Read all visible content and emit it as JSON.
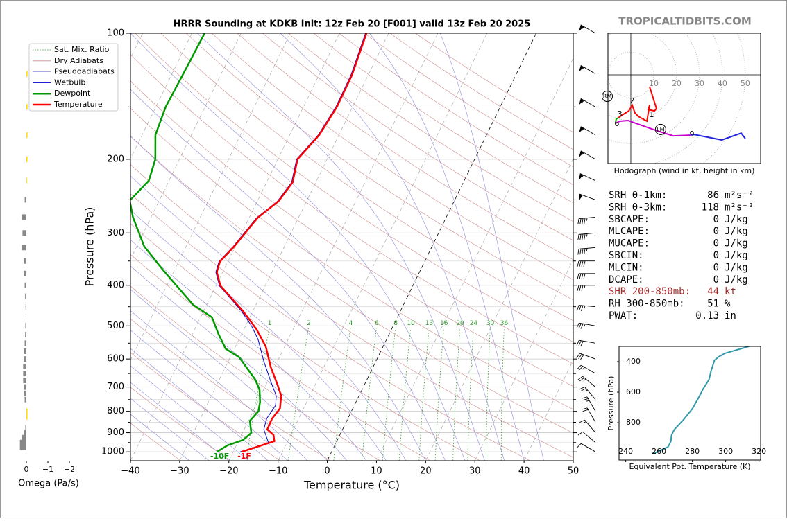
{
  "watermark": "TROPICALTIDBITS.COM",
  "indices": {
    "rows": [
      {
        "label": "SRH 0-1km:",
        "value": 86,
        "unit": "m²s⁻²"
      },
      {
        "label": "SRH 0-3km:",
        "value": 118,
        "unit": "m²s⁻²"
      },
      {
        "label": "SBCAPE:",
        "value": 0,
        "unit": "J/kg"
      },
      {
        "label": "MLCAPE:",
        "value": 0,
        "unit": "J/kg"
      },
      {
        "label": "MUCAPE:",
        "value": 0,
        "unit": "J/kg"
      },
      {
        "label": "SBCIN:",
        "value": 0,
        "unit": "J/kg"
      },
      {
        "label": "MLCIN:",
        "value": 0,
        "unit": "J/kg"
      },
      {
        "label": "DCAPE:",
        "value": 0,
        "unit": "J/kg"
      },
      {
        "label": "SHR 200-850mb:",
        "value": 44,
        "unit": "kt",
        "color": "#a52a2a"
      },
      {
        "label": "RH 300-850mb:",
        "value": 51,
        "unit": "%"
      },
      {
        "label": "PWAT:",
        "value": 0.13,
        "unit": "in"
      }
    ]
  },
  "chart_data": [
    {
      "type": "skewt",
      "title": "HRRR Sounding at KDKB Init: 12z Feb 20 [F001] valid 13z Feb 20 2025",
      "xlabel": "Temperature (°C)",
      "ylabel": "Pressure (hPa)",
      "xlim": [
        -40,
        50
      ],
      "ylim": [
        1050,
        100
      ],
      "log_y": true,
      "xticks": [
        {
          "value": -40,
          "label": "−40"
        },
        {
          "value": -30,
          "label": "−30"
        },
        {
          "value": -20,
          "label": "−20"
        },
        {
          "value": -10,
          "label": "−10"
        },
        0,
        10,
        20,
        30,
        40,
        50
      ],
      "yticks": [
        1000,
        900,
        800,
        700,
        600,
        500,
        400,
        300,
        200,
        100
      ],
      "yticks_minor": [
        950,
        850,
        750,
        650,
        550,
        450,
        350,
        250,
        150
      ],
      "grid": true,
      "reference_lines": [
        {
          "name": "Sat. Mix. Ratio",
          "color": "#2e9a2e"
        },
        {
          "name": "Dry Adiabats",
          "color": "#d08a8a"
        },
        {
          "name": "Pseudoadiabats",
          "color": "#8c8cd8"
        }
      ],
      "mixing_ratio_labels": [
        1,
        2,
        4,
        6,
        8,
        10,
        13,
        16,
        20,
        24,
        30,
        36
      ],
      "series": [
        {
          "name": "Wetbulb",
          "color": "#0000cc",
          "y": [
            1000,
            952,
            884,
            833,
            775,
            735,
            678,
            605,
            539,
            500,
            462,
            401,
            372,
            351,
            323,
            276,
            252,
            227,
            200,
            175,
            150,
            126,
            100
          ],
          "x": [
            -18.6,
            -13.7,
            -16,
            -16.5,
            -16,
            -16.8,
            -19.4,
            -22.9,
            -26.1,
            -28.8,
            -32.2,
            -39.3,
            -41.4,
            -41.8,
            -40.4,
            -38.5,
            -35.9,
            -34.9,
            -36.2,
            -34.2,
            -33.4,
            -33.5,
            -34.7
          ]
        },
        {
          "name": "Dewpoint",
          "color": "#009900",
          "y": [
            1000,
            965,
            937,
            901,
            843,
            800,
            760,
            711,
            672,
            594,
            567,
            523,
            477,
            445,
            401,
            368,
            323,
            275,
            251,
            225,
            200,
            175,
            150,
            124,
            100
          ],
          "x": [
            -23.3,
            -21.8,
            -19.2,
            -18.2,
            -19.7,
            -18.9,
            -19.5,
            -20.8,
            -22.7,
            -28.2,
            -31.8,
            -34.7,
            -37.7,
            -42.8,
            -48,
            -52.3,
            -58.5,
            -63.7,
            -66,
            -64.1,
            -64.9,
            -67.3,
            -68,
            -67.7,
            -67.4
          ],
          "value_labels": [
            "-10F",
            null,
            null,
            null,
            null,
            null,
            null,
            null,
            null,
            null,
            null,
            null,
            null,
            null,
            null,
            null,
            null,
            null,
            null,
            null,
            null,
            null,
            null,
            null,
            null
          ]
        },
        {
          "name": "Temperature",
          "color": "#ff0000",
          "y": [
            1000,
            943,
            911,
            884,
            833,
            788,
            735,
            695,
            627,
            561,
            510,
            462,
            401,
            372,
            351,
            323,
            276,
            252,
            227,
            200,
            175,
            150,
            126,
            100
          ],
          "x": [
            -18.3,
            -12.7,
            -13.5,
            -15.3,
            -15.4,
            -14.8,
            -15.8,
            -17.5,
            -20.8,
            -23.8,
            -27.4,
            -31.9,
            -39.1,
            -41.2,
            -41.6,
            -40.2,
            -38.3,
            -35.7,
            -34.7,
            -36.0,
            -34.0,
            -33.2,
            -33.3,
            -34.5
          ],
          "value_labels": [
            "-1F",
            null,
            null,
            null,
            null,
            null,
            null,
            null,
            null,
            null,
            null,
            null,
            null,
            null,
            null,
            null,
            null,
            null,
            null,
            null,
            null,
            null,
            null,
            null
          ]
        }
      ]
    },
    {
      "type": "hbar",
      "xlabel": "Omega (Pa/s)",
      "xlim": [
        0.4,
        -2.3
      ],
      "ylim": [
        1050,
        100
      ],
      "xticks": [
        0,
        {
          "value": -1,
          "label": "−1"
        },
        {
          "value": -2,
          "label": "−2"
        }
      ],
      "color": "#888888",
      "negative_color": "#ffdd00",
      "y": [
        125,
        150,
        175,
        200,
        225,
        250,
        275,
        300,
        325,
        350,
        375,
        400,
        425,
        450,
        475,
        500,
        525,
        550,
        575,
        600,
        625,
        650,
        675,
        700,
        725,
        750,
        800,
        825,
        850,
        875,
        900,
        925,
        950,
        975
      ],
      "values": [
        -0.05,
        -0.05,
        -0.05,
        -0.05,
        -0.03,
        0.08,
        0.2,
        0.18,
        0.2,
        0.12,
        0.1,
        0.08,
        0.06,
        0.04,
        0.03,
        0.05,
        0.06,
        0.08,
        0.1,
        0.12,
        0.15,
        0.15,
        0.15,
        0.12,
        0.1,
        0.08,
        -0.05,
        -0.05,
        0.03,
        0.05,
        0.1,
        0.2,
        0.3,
        0.3
      ]
    },
    {
      "type": "barbs",
      "y": [
        1000,
        950,
        900,
        850,
        800,
        750,
        700,
        650,
        600,
        550,
        500,
        450,
        400,
        375,
        350,
        325,
        300,
        275,
        250,
        225,
        200,
        175,
        150,
        125,
        100
      ],
      "speed": [
        10,
        10,
        15,
        20,
        25,
        25,
        25,
        25,
        30,
        30,
        35,
        35,
        35,
        40,
        40,
        45,
        45,
        45,
        50,
        55,
        55,
        55,
        55,
        55,
        55
      ],
      "direction": [
        300,
        310,
        320,
        330,
        330,
        320,
        310,
        300,
        290,
        280,
        280,
        275,
        270,
        270,
        270,
        265,
        265,
        265,
        290,
        295,
        300,
        300,
        300,
        300,
        300
      ]
    },
    {
      "type": "hodograph",
      "xlabel": "Hodograph (wind in kt, height in km)",
      "ulim": [
        -10,
        56.7
      ],
      "vlim": [
        -38.8,
        18.2
      ],
      "ring_labels": [
        10,
        20,
        30,
        40,
        50
      ],
      "segments": [
        {
          "color": "#ff0000",
          "u": [
            8.2,
            11.2,
            10.3,
            7.6,
            8.2,
            7.0,
            3.3,
            1.8,
            0.6,
            -0.9,
            -3.3,
            -5.5
          ],
          "v": [
            -5.2,
            -14.8,
            -15.8,
            -15.2,
            -13.3,
            -20.3,
            -18.2,
            -16.7,
            -13.3,
            -15.8,
            -17.3,
            -18.8
          ]
        },
        {
          "color": "#00aa00",
          "u": [
            -5.5,
            -6.4,
            -6.7
          ],
          "v": [
            -18.8,
            -19.4,
            -21.2
          ]
        },
        {
          "color": "#cc00cc",
          "u": [
            -6.7,
            -4.8,
            -1.2,
            6.4,
            12.4,
            18.5,
            26
          ],
          "v": [
            -21.2,
            -20.3,
            -20,
            -22.7,
            -24.8,
            -26.7,
            -26.4
          ]
        },
        {
          "color": "#2222dd",
          "u": [
            26,
            27.6,
            39.7,
            48.2,
            50
          ],
          "v": [
            -26.4,
            -26.1,
            -28.5,
            -25.5,
            -27.9
          ]
        }
      ],
      "height_labels": [
        {
          "height": 1,
          "u": 9.1,
          "v": -17.6
        },
        {
          "height": 2,
          "u": 0.6,
          "v": -11.5
        },
        {
          "height": 3,
          "u": -4.8,
          "v": -17.3
        },
        {
          "height": 6,
          "u": -6.1,
          "v": -21.5
        },
        {
          "height": 9,
          "u": 26.7,
          "v": -26.1
        }
      ],
      "storm_motion": [
        {
          "label": "RM",
          "u": -10.3,
          "v": -9.4
        },
        {
          "label": "LM",
          "u": 13,
          "v": -23.9
        }
      ]
    },
    {
      "type": "line",
      "xlabel": "Equivalent Pot. Temperature (K)",
      "ylabel": "Pressure (hPa)",
      "xlim": [
        236,
        321
      ],
      "ylim": [
        1045,
        300
      ],
      "xticks": [
        240,
        260,
        280,
        300,
        320
      ],
      "yticks": [
        400,
        600,
        800
      ],
      "color": "#3399aa",
      "x": [
        256.3,
        265.4,
        267.1,
        267.5,
        269.2,
        274.6,
        280,
        284.2,
        286.3,
        290,
        291.3,
        293.3,
        295.8,
        299.6,
        314
      ],
      "y": [
        1005,
        959,
        923,
        882,
        845,
        782,
        709,
        627,
        582,
        518,
        459,
        391,
        368,
        345,
        300
      ]
    }
  ]
}
